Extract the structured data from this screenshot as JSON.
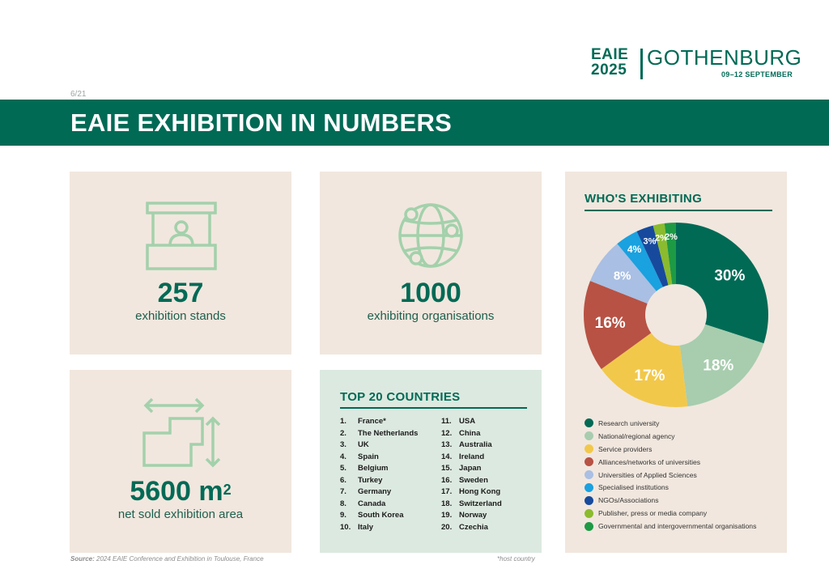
{
  "logo": {
    "line1": "EAIE",
    "line2": "2025",
    "city": "GOTHENBURG",
    "dates": "09–12 SEPTEMBER"
  },
  "page_number": "6/21",
  "title": "EAIE EXHIBITION IN NUMBERS",
  "stats": {
    "stands": {
      "value": "257",
      "label": "exhibition stands",
      "icon": "exhibition-booth-icon"
    },
    "organisations": {
      "value": "1000",
      "label": "exhibiting organisations",
      "icon": "globe-network-icon"
    },
    "area": {
      "value": "5600 m",
      "unit_sup": "2",
      "label": "net sold exhibition area",
      "icon": "floor-area-icon"
    }
  },
  "countries": {
    "title": "TOP 20 COUNTRIES",
    "left": [
      {
        "rank": "1.",
        "name": "France*"
      },
      {
        "rank": "2.",
        "name": "The Netherlands"
      },
      {
        "rank": "3.",
        "name": "UK"
      },
      {
        "rank": "4.",
        "name": "Spain"
      },
      {
        "rank": "5.",
        "name": "Belgium"
      },
      {
        "rank": "6.",
        "name": "Turkey"
      },
      {
        "rank": "7.",
        "name": "Germany"
      },
      {
        "rank": "8.",
        "name": "Canada"
      },
      {
        "rank": "9.",
        "name": "South Korea"
      },
      {
        "rank": "10.",
        "name": "Italy"
      }
    ],
    "right": [
      {
        "rank": "11.",
        "name": "USA"
      },
      {
        "rank": "12.",
        "name": "China"
      },
      {
        "rank": "13.",
        "name": "Australia"
      },
      {
        "rank": "14.",
        "name": "Ireland"
      },
      {
        "rank": "15.",
        "name": "Japan"
      },
      {
        "rank": "16.",
        "name": "Sweden"
      },
      {
        "rank": "17.",
        "name": "Hong Kong"
      },
      {
        "rank": "18.",
        "name": "Switzerland"
      },
      {
        "rank": "19.",
        "name": "Norway"
      },
      {
        "rank": "20.",
        "name": "Czechia"
      }
    ],
    "note": "*host country"
  },
  "chart_data": {
    "type": "pie",
    "title": "WHO'S EXHIBITING",
    "donut": true,
    "categories": [
      "Research university",
      "National/regional agency",
      "Service providers",
      "Alliances/networks of universities",
      "Universities of Applied Sciences",
      "Specialised institutions",
      "NGOs/Associations",
      "Publisher, press or media company",
      "Governmental and intergovernmental organisations"
    ],
    "values": [
      30,
      18,
      17,
      16,
      8,
      4,
      3,
      2,
      2
    ],
    "labels": [
      "30%",
      "18%",
      "17%",
      "16%",
      "8%",
      "4%",
      "3%",
      "2%",
      "2%"
    ],
    "colors": [
      "#006a55",
      "#a7cdae",
      "#f2c84b",
      "#b85244",
      "#a9bfe3",
      "#1aa1e0",
      "#174a9d",
      "#8bbb2e",
      "#1e9a45"
    ],
    "legend_position": "bottom"
  },
  "footer": {
    "source_label": "Source:",
    "source_text": " 2024 EAIE Conference and Exhibition in Toulouse, France"
  }
}
